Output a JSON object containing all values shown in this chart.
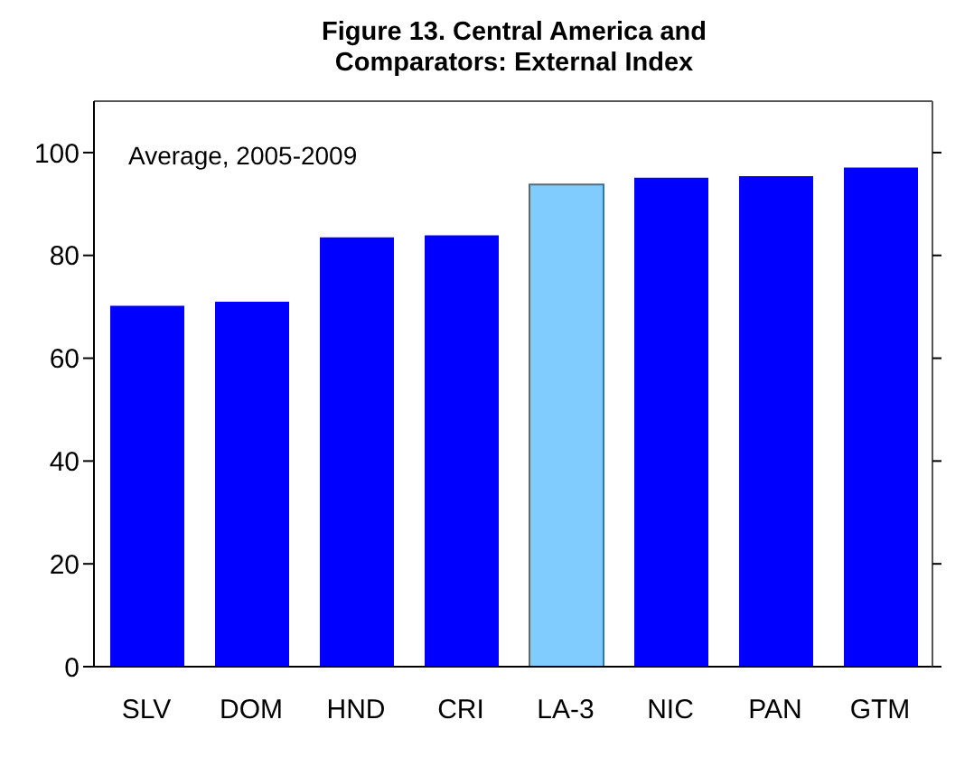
{
  "chart_data": {
    "type": "bar",
    "title": "Figure 13. Central America and Comparators: External Index",
    "categories": [
      "SLV",
      "DOM",
      "HND",
      "CRI",
      "LA-3",
      "NIC",
      "PAN",
      "GTM"
    ],
    "values": [
      70.2,
      71.0,
      83.5,
      83.9,
      93.8,
      95.1,
      95.4,
      97.1
    ],
    "colors": [
      "#0000ff",
      "#0000ff",
      "#0000ff",
      "#0000ff",
      "#80ccff",
      "#0000ff",
      "#0000ff",
      "#0000ff"
    ],
    "ylim": [
      0,
      110
    ],
    "yticks": [
      0,
      20,
      40,
      60,
      80,
      100
    ],
    "annotations": [
      "Average, 2005-2009"
    ]
  }
}
